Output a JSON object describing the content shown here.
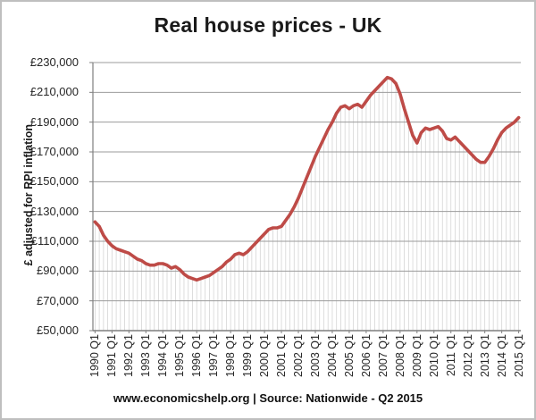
{
  "chart_data": {
    "type": "line",
    "title": "Real house prices - UK",
    "ylabel": "£ adjusted for RPI inflation",
    "xlabel": "",
    "source_caption": "www.economicshelp.org | Source: Nationwide - Q2 2015",
    "legend": "none",
    "grid": "horizontal major gridlines every £20,000; thin vertical drop lines from each quarterly point to x-axis",
    "ylim": [
      50000,
      230000
    ],
    "y_tick_step": 20000,
    "y_tick_labels": [
      "£230,000",
      "£210,000",
      "£190,000",
      "£170,000",
      "£150,000",
      "£130,000",
      "£110,000",
      "£90,000",
      "£70,000",
      "£50,000"
    ],
    "x_start": "1990 Q1",
    "x_end": "2015 Q1",
    "frequency": "quarterly",
    "x_tick_interval_points": 4,
    "x_tick_labels": [
      "1990 Q1",
      "1991 Q1",
      "1992 Q1",
      "1993 Q1",
      "1994 Q1",
      "1995 Q1",
      "1996 Q1",
      "1997 Q1",
      "1998 Q1",
      "1999 Q1",
      "2000 Q1",
      "2001 Q1",
      "2002 Q1",
      "2003 Q1",
      "2004 Q1",
      "2005 Q1",
      "2006 Q1",
      "2007 Q1",
      "2008 Q1",
      "2009 Q1",
      "2010 Q1",
      "2011 Q1",
      "2012 Q1",
      "2013 Q1",
      "2014 Q1",
      "2015 Q1"
    ],
    "line_color": "#BE4B47",
    "series": [
      {
        "name": "Real house prices - UK",
        "values": [
          123000,
          120000,
          114000,
          110000,
          107000,
          105000,
          104000,
          103000,
          102000,
          100000,
          98000,
          97000,
          95000,
          94000,
          94000,
          95000,
          95000,
          94000,
          92000,
          93000,
          91000,
          88000,
          86000,
          85000,
          84000,
          85000,
          86000,
          87000,
          89000,
          91000,
          93000,
          96000,
          98000,
          101000,
          102000,
          101000,
          103000,
          106000,
          109000,
          112000,
          115000,
          118000,
          119000,
          119000,
          120000,
          124000,
          128000,
          133000,
          139000,
          146000,
          153000,
          160000,
          167000,
          173000,
          179000,
          185000,
          190000,
          196000,
          200000,
          201000,
          199000,
          201000,
          202000,
          200000,
          204000,
          208000,
          211000,
          214000,
          217000,
          220000,
          219000,
          216000,
          209000,
          199000,
          190000,
          181000,
          176000,
          183000,
          186000,
          185000,
          186000,
          187000,
          184000,
          179000,
          178000,
          180000,
          177000,
          174000,
          171000,
          168000,
          165000,
          163000,
          163000,
          167000,
          172000,
          178000,
          183000,
          186000,
          188000,
          190000,
          193000
        ]
      }
    ]
  },
  "colors": {
    "line": "#BE4B47",
    "major_gridline": "#9b9b9b",
    "axis": "#7f7f7f",
    "drop_line": "#d5d5d5",
    "text": "#262626",
    "frame_border": "#bfbfbf",
    "background": "#ffffff"
  }
}
